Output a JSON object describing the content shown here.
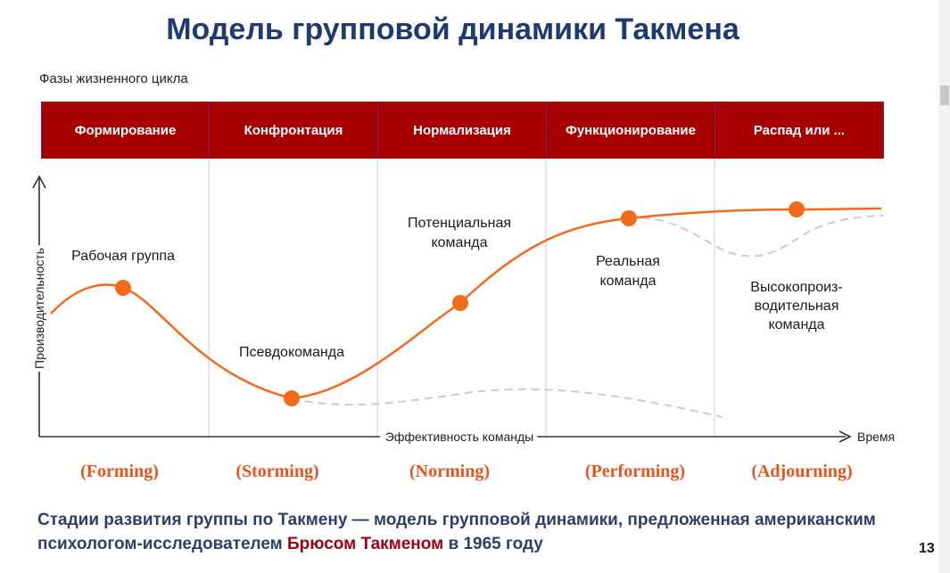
{
  "title": "Модель групповой динамики Такмена",
  "phases_label": "Фазы жизненного цикла",
  "phases": [
    {
      "label": "Формирование"
    },
    {
      "label": "Конфронтация"
    },
    {
      "label": "Нормализация"
    },
    {
      "label": "Функционирование"
    },
    {
      "label": "Распад или ..."
    }
  ],
  "axes": {
    "y_label": "Производительность",
    "x_label": "Эффективность команды",
    "x_end_label": "Время"
  },
  "stages": {
    "working_group": "Рабочая группа",
    "pseudo_team": "Псевдокоманда",
    "potential_team_1": "Потенциальная",
    "potential_team_2": "команда",
    "real_team_1": "Реальная",
    "real_team_2": "команда",
    "high_perf_1": "Высокопроиз-",
    "high_perf_2": "водительная",
    "high_perf_3": "команда"
  },
  "english_stages": [
    "(Forming)",
    "(Storming)",
    "(Norming)",
    "(Performing)",
    "(Adjourning)"
  ],
  "caption": {
    "part1": "Стадии развития группы по Такмену — модель групповой динамики, предложенная американским психологом-исследователем ",
    "highlight": "Брюсом Такменом",
    "part2": " в 1965 году"
  },
  "page_number": "13",
  "colors": {
    "title": "#1f3a6e",
    "phase_bg": "#a80000",
    "curve": "#f26b1d",
    "dashed": "#cccccc",
    "english_stage": "#e8541e",
    "caption": "#2d3f66",
    "caption_highlight": "#a00018"
  }
}
